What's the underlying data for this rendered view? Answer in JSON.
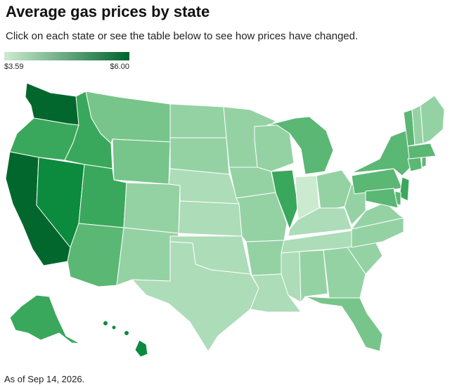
{
  "header": {
    "title": "Average gas prices by state",
    "subtitle": "Click on each state or see the table below to see how prices have changed."
  },
  "legend": {
    "min_label": "$3.59",
    "max_label": "$6.00",
    "color_low": "#cdebd3",
    "color_high": "#00632b"
  },
  "footnote": "As of Sep 14, 2026.",
  "map_colors": {
    "darkest": "#01672d",
    "dark": "#0c8a3e",
    "mid_dark": "#3aa85c",
    "mid": "#5bb774",
    "mid_light": "#77c58a",
    "light": "#94d2a4",
    "lighter": "#acdcb8",
    "lightest": "#cbeacf"
  }
}
